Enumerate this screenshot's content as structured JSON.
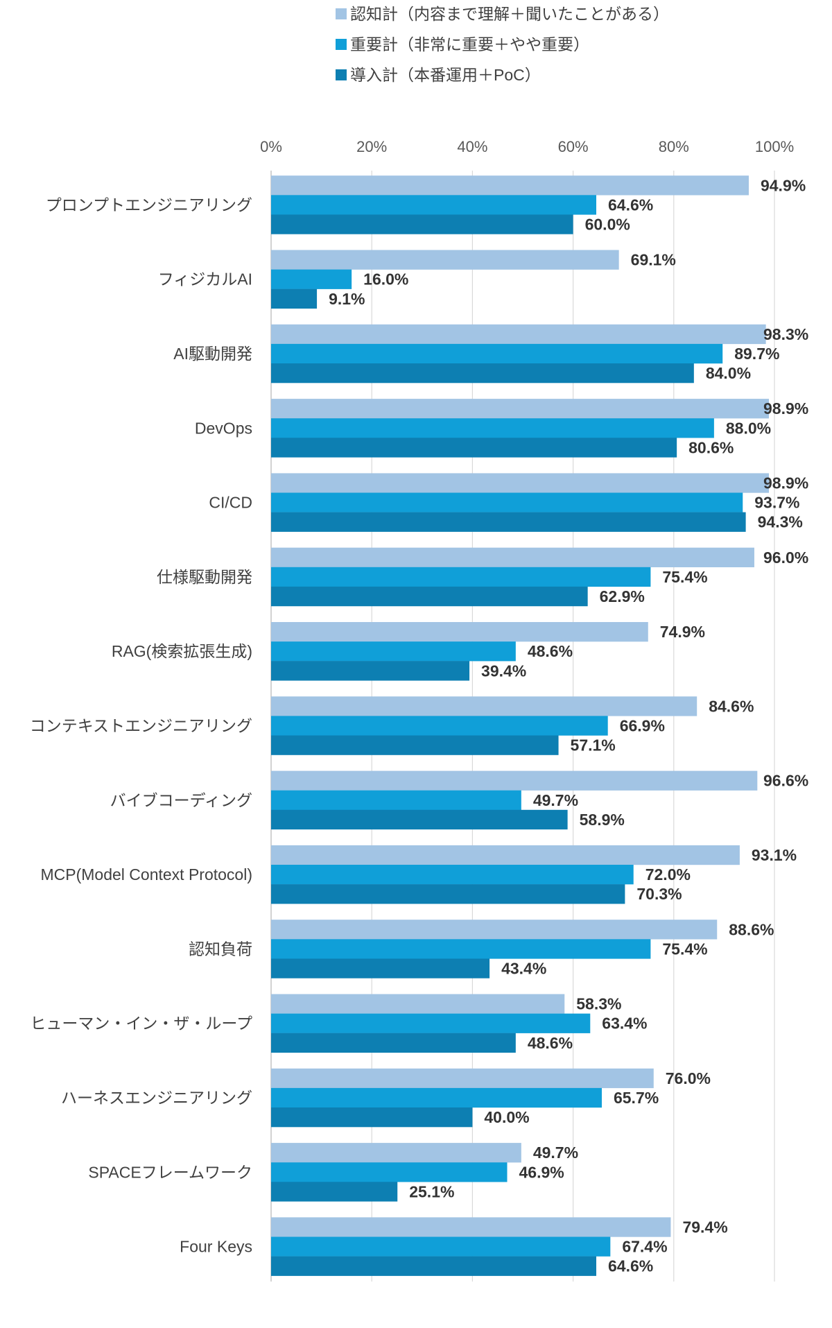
{
  "chart_data": {
    "type": "bar",
    "orientation": "horizontal",
    "categories": [
      "プロンプトエンジニアリング",
      "フィジカルAI",
      "AI駆動開発",
      "DevOps",
      "CI/CD",
      "仕様駆動開発",
      "RAG(検索拡張生成)",
      "コンテキストエンジニアリング",
      "バイブコーディング",
      "MCP(Model Context Protocol)",
      "認知負荷",
      "ヒューマン・イン・ザ・ループ",
      "ハーネスエンジニアリング",
      "SPACEフレームワーク",
      "Four Keys"
    ],
    "series": [
      {
        "name": "認知計（内容まで理解＋聞いたことがある）",
        "color": "#a2c4e4",
        "values": [
          94.9,
          69.1,
          98.3,
          98.9,
          98.9,
          96.0,
          74.9,
          84.6,
          96.6,
          93.1,
          88.6,
          58.3,
          76.0,
          49.7,
          79.4
        ],
        "labels": [
          "94.9%",
          "69.1%",
          "98.3%",
          "98.9%",
          "98.9%",
          "96.0%",
          "74.9%",
          "84.6%",
          "96.6%",
          "93.1%",
          "88.6%",
          "58.3%",
          "76.0%",
          "49.7%",
          "79.4%"
        ]
      },
      {
        "name": "重要計（非常に重要＋やや重要）",
        "color": "#109fd8",
        "values": [
          64.6,
          16.0,
          89.7,
          88.0,
          93.7,
          75.4,
          48.6,
          66.9,
          49.7,
          72.0,
          75.4,
          63.4,
          65.7,
          46.9,
          67.4
        ],
        "labels": [
          "64.6%",
          "16.0%",
          "89.7%",
          "88.0%",
          "93.7%",
          "75.4%",
          "48.6%",
          "66.9%",
          "49.7%",
          "72.0%",
          "75.4%",
          "63.4%",
          "65.7%",
          "46.9%",
          "67.4%"
        ]
      },
      {
        "name": "導入計（本番運用＋PoC）",
        "color": "#0d7fb2",
        "values": [
          60.0,
          9.1,
          84.0,
          80.6,
          94.3,
          62.9,
          39.4,
          57.1,
          58.9,
          70.3,
          43.4,
          48.6,
          40.0,
          25.1,
          64.6
        ],
        "labels": [
          "60.0%",
          "9.1%",
          "84.0%",
          "80.6%",
          "94.3%",
          "62.9%",
          "39.4%",
          "57.1%",
          "58.9%",
          "70.3%",
          "43.4%",
          "48.6%",
          "40.0%",
          "25.1%",
          "64.6%"
        ]
      }
    ],
    "xlim": [
      0,
      100
    ],
    "xticks": [
      0,
      20,
      40,
      60,
      80,
      100
    ],
    "xtick_labels": [
      "0%",
      "20%",
      "40%",
      "60%",
      "80%",
      "100%"
    ],
    "grid": true,
    "legend_position": "top"
  }
}
